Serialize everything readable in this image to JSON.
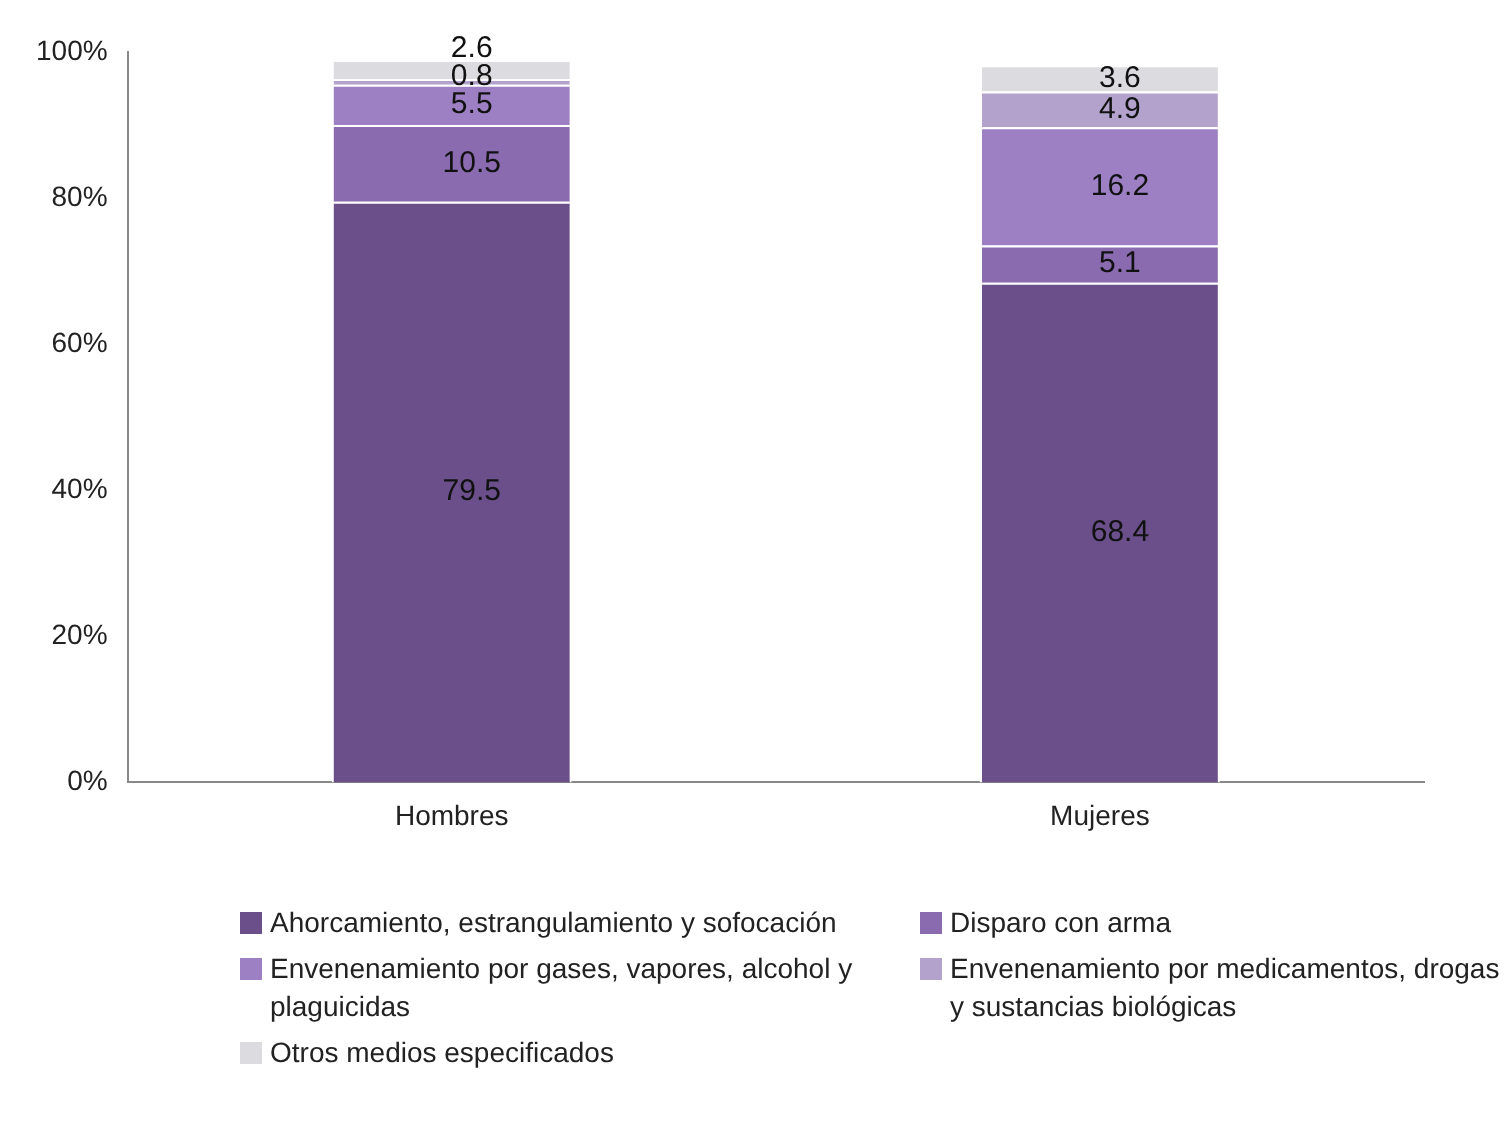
{
  "chart_data": {
    "type": "bar",
    "stacked": true,
    "categories": [
      "Hombres",
      "Mujeres"
    ],
    "series": [
      {
        "name": "Ahorcamiento, estrangulamiento y sofocación",
        "color": "#6a4f8a",
        "values": [
          79.5,
          68.4
        ]
      },
      {
        "name": "Disparo con arma",
        "color": "#8a6bb0",
        "values": [
          10.5,
          5.1
        ]
      },
      {
        "name": "Envenenamiento por gases, vapores, alcohol y plaguicidas",
        "color": "#9d80c4",
        "values": [
          5.5,
          16.2
        ]
      },
      {
        "name": "Envenenamiento por medicamentos, drogas y sustancias biológicas",
        "color": "#b3a3cc",
        "values": [
          0.8,
          4.9
        ]
      },
      {
        "name": "Otros medios especificados",
        "color": "#dcdce0",
        "values": [
          2.6,
          3.6
        ]
      }
    ],
    "ylim": [
      0,
      100
    ],
    "yticks": [
      {
        "value": 0,
        "label": "0%"
      },
      {
        "value": 20,
        "label": "20%"
      },
      {
        "value": 40,
        "label": "40%"
      },
      {
        "value": 60,
        "label": "60%"
      },
      {
        "value": 80,
        "label": "80%"
      },
      {
        "value": 100,
        "label": "100%"
      }
    ],
    "grid": false,
    "legend": "bottom",
    "data_labels": true
  }
}
